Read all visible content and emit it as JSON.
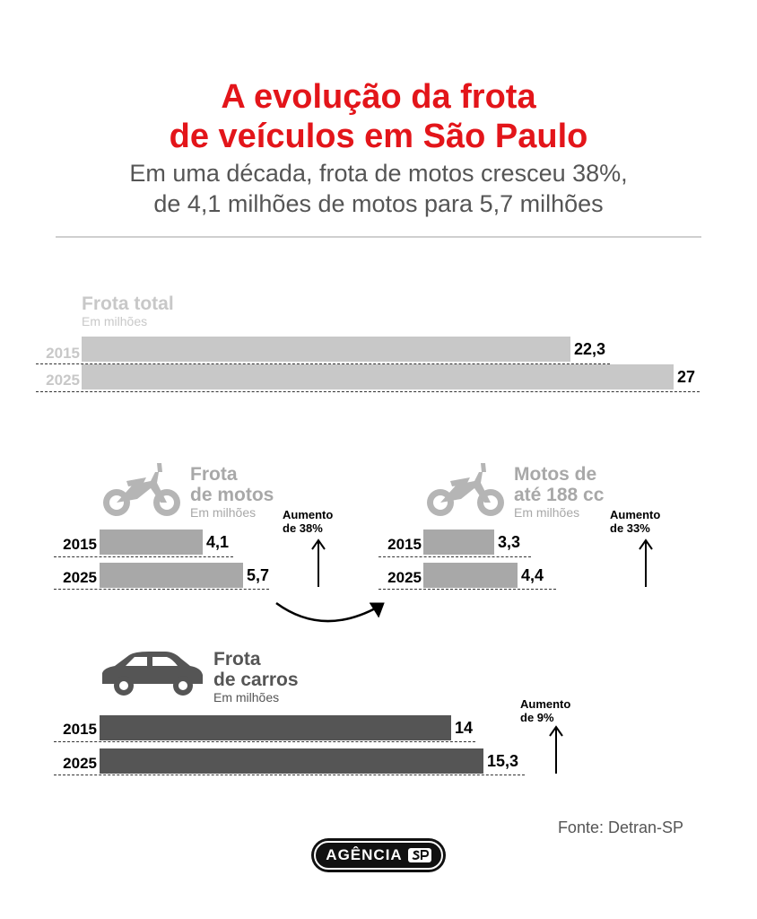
{
  "header": {
    "title_line1": "A evolução da frota",
    "title_line2": "de veículos em São Paulo",
    "subtitle_line1": "Em uma década, frota de motos cresceu 38%,",
    "subtitle_line2": "de 4,1 milhões de motos para 5,7 milhões"
  },
  "colors": {
    "title": "#e3151a",
    "total": "#c8c8c8",
    "motos": "#a8a8a8",
    "carros": "#555555"
  },
  "chart_data": [
    {
      "type": "bar",
      "title": "Frota total",
      "subtitle": "Em milhões",
      "categories": [
        "2015",
        "2025"
      ],
      "values": [
        22.3,
        27
      ],
      "value_labels": [
        "22,3",
        "27"
      ]
    },
    {
      "type": "bar",
      "title": "Frota de motos",
      "subtitle": "Em milhões",
      "categories": [
        "2015",
        "2025"
      ],
      "values": [
        4.1,
        5.7
      ],
      "value_labels": [
        "4,1",
        "5,7"
      ],
      "annotation": "Aumento de 38%"
    },
    {
      "type": "bar",
      "title": "Motos de até 188 cc",
      "subtitle": "Em milhões",
      "categories": [
        "2015",
        "2025"
      ],
      "values": [
        3.3,
        4.4
      ],
      "value_labels": [
        "3,3",
        "4,4"
      ],
      "annotation": "Aumento de 33%"
    },
    {
      "type": "bar",
      "title": "Frota de carros",
      "subtitle": "Em milhões",
      "categories": [
        "2015",
        "2025"
      ],
      "values": [
        14,
        15.3
      ],
      "value_labels": [
        "14",
        "15,3"
      ],
      "annotation": "Aumento de 9%"
    }
  ],
  "labels": {
    "total_title": "Frota total",
    "motos_title_1": "Frota",
    "motos_title_2": "de motos",
    "cc_title_1": "Motos de",
    "cc_title_2": "até 188 cc",
    "carros_title_1": "Frota",
    "carros_title_2": "de carros",
    "unit": "Em milhões",
    "year_2015": "2015",
    "year_2025": "2025",
    "inc_word": "Aumento",
    "inc_motos": "de 38%",
    "inc_cc": "de 33%",
    "inc_carros": "de 9%"
  },
  "icons": {
    "moto": "motorcycle-icon",
    "car": "car-icon",
    "arrow": "arrow-up-icon",
    "curve": "curved-arrow-icon",
    "logo": "agencia-sp-logo"
  },
  "footer": {
    "source": "Fonte: Detran-SP",
    "logo_text": "AGÊNCIA"
  }
}
